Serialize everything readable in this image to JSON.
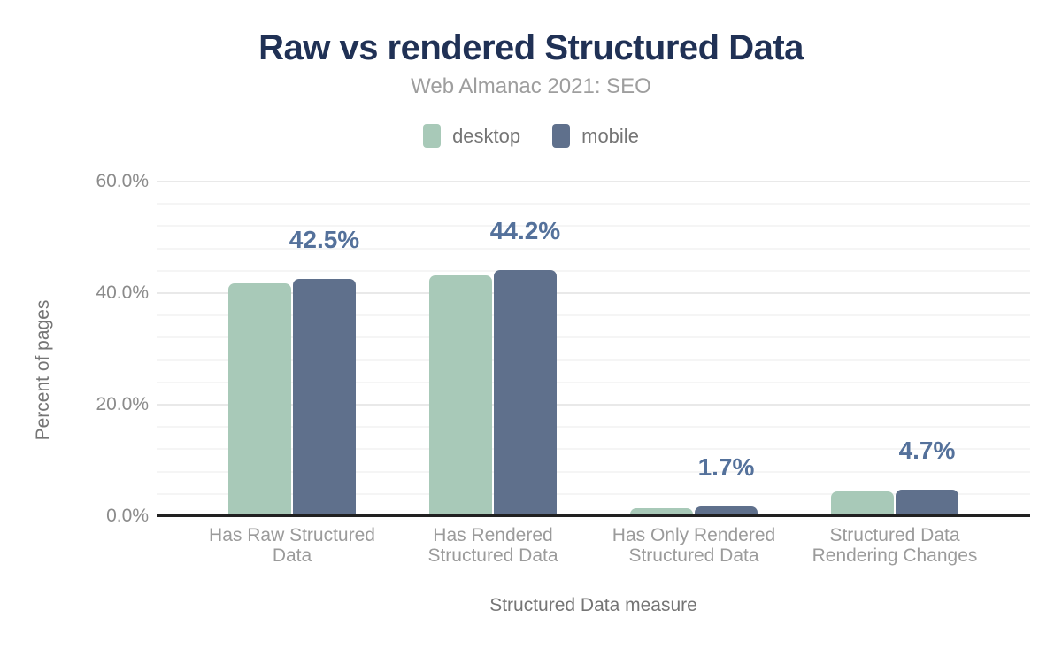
{
  "header": {
    "title": "Raw vs rendered Structured Data",
    "subtitle": "Web Almanac 2021: SEO"
  },
  "legend": {
    "items": [
      {
        "label": "desktop",
        "color": "#a8c9b8"
      },
      {
        "label": "mobile",
        "color": "#5f708c"
      }
    ]
  },
  "chart_data": {
    "type": "bar",
    "title": "Raw vs rendered Structured Data",
    "subtitle": "Web Almanac 2021: SEO",
    "categories": [
      "Has Raw Structured Data",
      "Has Rendered Structured Data",
      "Has Only Rendered Structured Data",
      "Structured Data Rendering Changes"
    ],
    "series": [
      {
        "name": "desktop",
        "color": "#a8c9b8",
        "values": [
          41.8,
          43.2,
          1.4,
          4.4
        ]
      },
      {
        "name": "mobile",
        "color": "#5f708c",
        "values": [
          42.5,
          44.2,
          1.7,
          4.7
        ]
      }
    ],
    "value_labels": [
      "42.5%",
      "44.2%",
      "1.7%",
      "4.7%"
    ],
    "value_labels_series": "mobile",
    "xlabel": "Structured Data measure",
    "ylabel": "Percent of pages",
    "ylim": [
      0,
      60
    ],
    "yticks": [
      {
        "value": 0,
        "label": "0.0%"
      },
      {
        "value": 20,
        "label": "20.0%"
      },
      {
        "value": 40,
        "label": "40.0%"
      },
      {
        "value": 60,
        "label": "60.0%"
      }
    ],
    "minor_gridline_step_percent": 4,
    "major_gridline_step_percent": 20,
    "grid": true,
    "legend_position": "top"
  },
  "colors": {
    "title": "#203155",
    "subtitle": "#9e9e9e",
    "legend_text": "#757575",
    "tick_label": "#8b8b8b",
    "category_label": "#9b9b9b",
    "axis_title": "#757575",
    "value_label": "#54719b",
    "axis_line": "#212121",
    "major_gridline": "#e9e9e9",
    "minor_gridline": "#f5f5f5"
  }
}
